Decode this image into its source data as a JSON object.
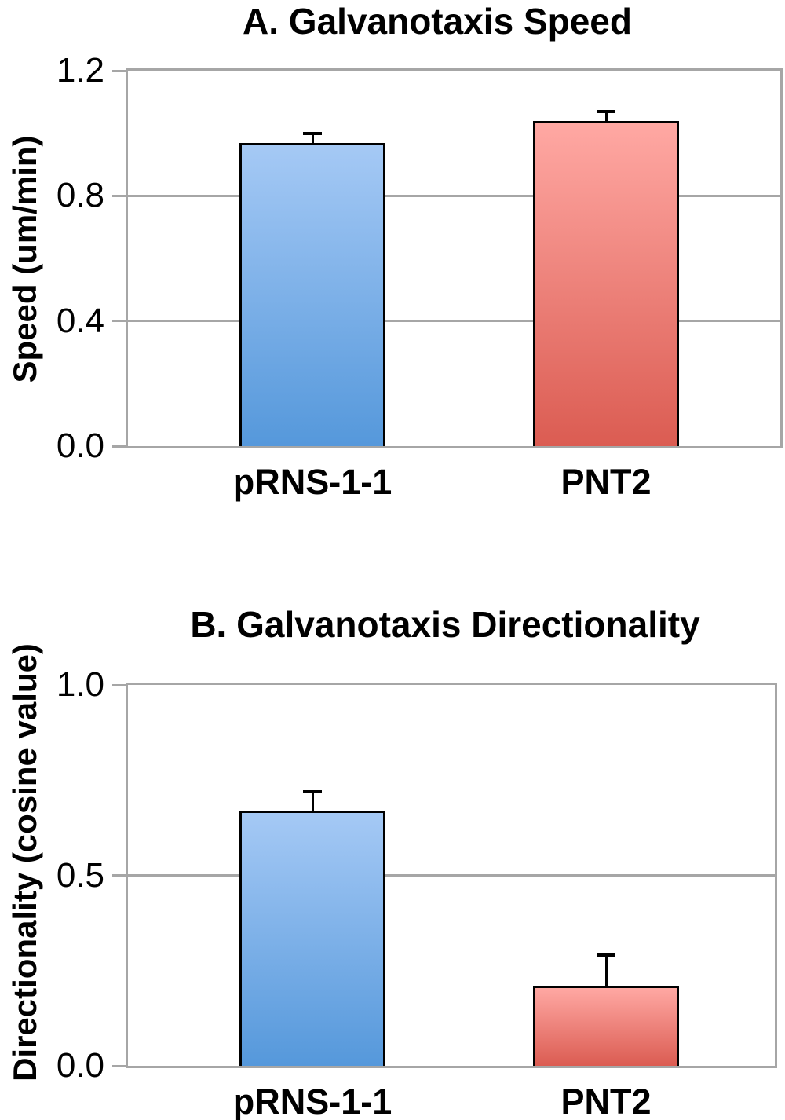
{
  "figure": {
    "panels": [
      "A",
      "B"
    ],
    "background": "#ffffff"
  },
  "colors": {
    "axis": "#a6a6a6",
    "bar_border": "#000000",
    "error_bar": "#000000",
    "text": "#000000",
    "bar1_top": "#a5c9f5",
    "bar1_bottom": "#5598db",
    "bar2_top": "#ffa8a3",
    "bar2_bottom": "#db5c52"
  },
  "chart_data": [
    {
      "type": "bar",
      "title": "A. Galvanotaxis Speed",
      "ylabel": "Speed (um/min)",
      "xlabel": "",
      "categories": [
        "pRNS-1-1",
        "PNT2"
      ],
      "values": [
        0.97,
        1.04
      ],
      "errors_plus": [
        0.03,
        0.03
      ],
      "ylim": [
        0.0,
        1.2
      ],
      "yticks": [
        0.0,
        0.4,
        0.8,
        1.2
      ],
      "ytick_labels": [
        "0.0",
        "0.4",
        "0.8",
        "1.2"
      ],
      "grid": true,
      "legend": "none",
      "bar_fill": [
        "blue-gradient",
        "red-gradient"
      ]
    },
    {
      "type": "bar",
      "title": "B. Galvanotaxis Directionality",
      "ylabel": "Directionality (cosine value)",
      "xlabel": "",
      "categories": [
        "pRNS-1-1",
        "PNT2"
      ],
      "values": [
        0.67,
        0.21
      ],
      "errors_plus": [
        0.05,
        0.08
      ],
      "ylim": [
        0.0,
        1.0
      ],
      "yticks": [
        0.0,
        0.5,
        1.0
      ],
      "ytick_labels": [
        "0.0",
        "0.5",
        "1.0"
      ],
      "grid": true,
      "legend": "none",
      "bar_fill": [
        "blue-gradient",
        "red-gradient"
      ]
    }
  ]
}
